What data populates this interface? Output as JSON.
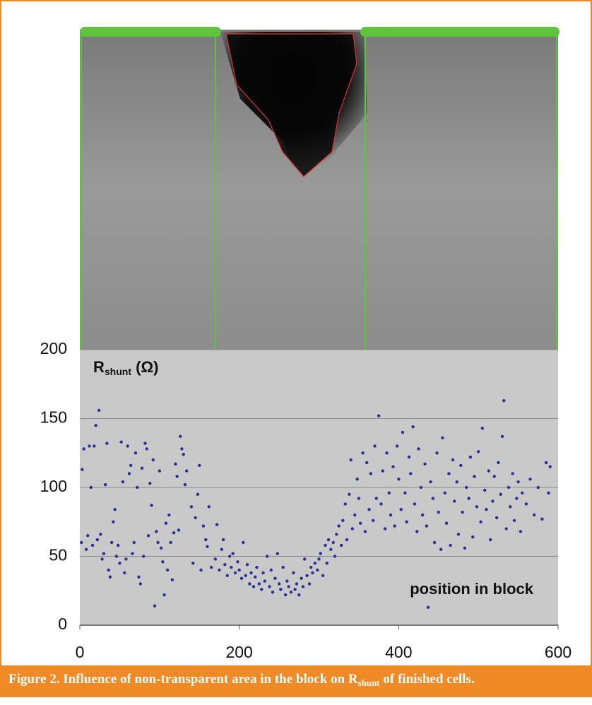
{
  "chart_data": {
    "type": "scatter",
    "color": "#2b2f96",
    "ylabel": {
      "main": "R",
      "sub": "shunt",
      "unit": " (Ω)"
    },
    "annotation": "position in block",
    "caption": {
      "prefix": "Figure 2. Influence of non-transparent area in the block on R",
      "sub": "shunt",
      "suffix": " of finished cells."
    },
    "xlim": [
      0,
      600
    ],
    "xticks": [
      0,
      200,
      400,
      600
    ],
    "ylim": [
      0,
      200
    ],
    "yticks": [
      0,
      50,
      100,
      150,
      200
    ],
    "grid": true,
    "x": [
      2,
      3,
      5,
      8,
      10,
      12,
      14,
      16,
      18,
      20,
      22,
      24,
      26,
      28,
      30,
      32,
      34,
      36,
      38,
      40,
      42,
      44,
      46,
      48,
      50,
      52,
      54,
      56,
      58,
      60,
      62,
      64,
      66,
      68,
      70,
      72,
      74,
      76,
      78,
      80,
      82,
      84,
      86,
      88,
      90,
      92,
      94,
      96,
      98,
      100,
      102,
      104,
      106,
      108,
      110,
      112,
      114,
      116,
      118,
      120,
      122,
      124,
      126,
      128,
      130,
      132,
      134,
      140,
      142,
      145,
      148,
      150,
      152,
      155,
      158,
      160,
      162,
      165,
      170,
      172,
      175,
      178,
      180,
      182,
      185,
      188,
      190,
      192,
      195,
      198,
      200,
      203,
      205,
      208,
      210,
      213,
      215,
      218,
      220,
      222,
      225,
      228,
      230,
      232,
      235,
      238,
      240,
      242,
      245,
      248,
      250,
      252,
      255,
      258,
      260,
      262,
      265,
      268,
      270,
      272,
      275,
      278,
      280,
      282,
      285,
      288,
      290,
      292,
      295,
      298,
      300,
      302,
      305,
      308,
      310,
      312,
      315,
      318,
      320,
      322,
      325,
      328,
      330,
      333,
      335,
      338,
      340,
      342,
      345,
      348,
      350,
      352,
      355,
      358,
      360,
      363,
      365,
      368,
      370,
      372,
      375,
      378,
      380,
      383,
      385,
      388,
      390,
      393,
      395,
      398,
      400,
      403,
      405,
      408,
      410,
      413,
      415,
      418,
      420,
      423,
      425,
      428,
      430,
      433,
      435,
      437,
      440,
      443,
      445,
      448,
      450,
      453,
      455,
      458,
      460,
      463,
      465,
      468,
      470,
      473,
      475,
      478,
      480,
      483,
      485,
      488,
      490,
      493,
      495,
      498,
      500,
      503,
      505,
      508,
      510,
      513,
      515,
      518,
      520,
      523,
      525,
      528,
      530,
      532,
      535,
      538,
      540,
      543,
      545,
      548,
      550,
      553,
      555,
      560,
      565,
      570,
      575,
      580,
      585,
      588,
      590
    ],
    "values": [
      60,
      113,
      128,
      55,
      65,
      130,
      100,
      58,
      130,
      145,
      62,
      156,
      66,
      48,
      52,
      102,
      132,
      40,
      35,
      60,
      75,
      84,
      50,
      58,
      45,
      133,
      104,
      38,
      48,
      130,
      110,
      116,
      52,
      60,
      125,
      100,
      35,
      30,
      114,
      50,
      132,
      128,
      65,
      103,
      87,
      120,
      14,
      68,
      60,
      112,
      56,
      46,
      22,
      74,
      40,
      80,
      60,
      33,
      67,
      117,
      108,
      69,
      137,
      128,
      124,
      102,
      112,
      86,
      45,
      78,
      95,
      116,
      40,
      72,
      62,
      57,
      86,
      42,
      48,
      73,
      40,
      55,
      62,
      44,
      36,
      50,
      42,
      52,
      38,
      46,
      40,
      34,
      60,
      36,
      44,
      30,
      38,
      28,
      35,
      42,
      30,
      26,
      38,
      32,
      50,
      28,
      40,
      24,
      34,
      52,
      30,
      26,
      42,
      22,
      32,
      28,
      24,
      38,
      26,
      30,
      22,
      34,
      28,
      48,
      36,
      30,
      42,
      38,
      45,
      40,
      48,
      52,
      36,
      58,
      45,
      62,
      55,
      60,
      50,
      66,
      72,
      58,
      76,
      88,
      62,
      95,
      120,
      70,
      80,
      106,
      92,
      74,
      125,
      68,
      118,
      84,
      110,
      76,
      130,
      92,
      152,
      88,
      112,
      70,
      125,
      96,
      80,
      115,
      72,
      130,
      106,
      84,
      140,
      96,
      75,
      122,
      110,
      144,
      88,
      68,
      128,
      100,
      80,
      117,
      72,
      13,
      104,
      92,
      60,
      125,
      82,
      55,
      136,
      96,
      74,
      110,
      58,
      120,
      90,
      104,
      66,
      116,
      82,
      56,
      100,
      92,
      122,
      64,
      108,
      86,
      126,
      75,
      143,
      98,
      84,
      112,
      62,
      90,
      108,
      78,
      118,
      95,
      137,
      163,
      70,
      100,
      86,
      110,
      76,
      92,
      104,
      68,
      96,
      88,
      106,
      80,
      100,
      77,
      118,
      96,
      115
    ]
  }
}
